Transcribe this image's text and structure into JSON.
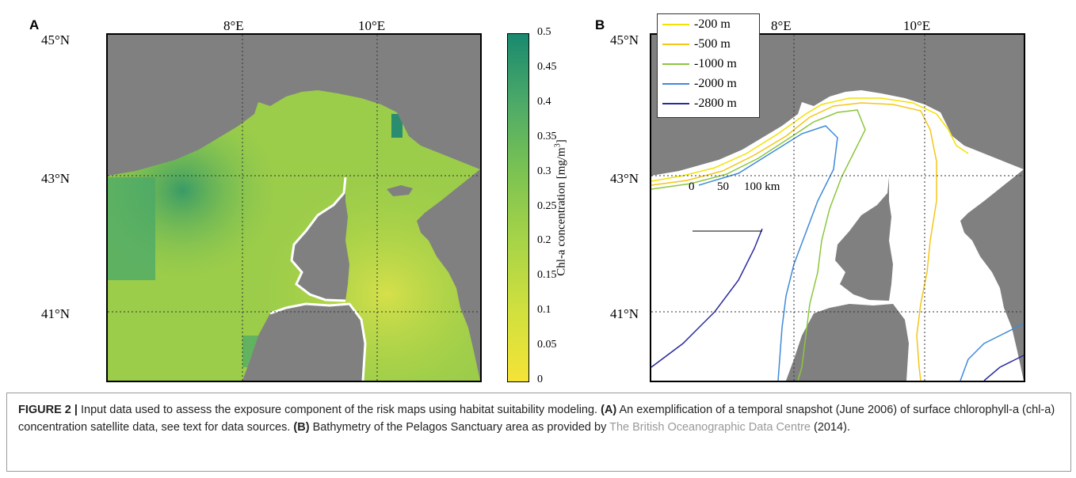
{
  "panel_a": {
    "letter": "A",
    "lon_labels": [
      "8°E",
      "10°E"
    ],
    "lat_labels": [
      "45°N",
      "43°N",
      "41°N"
    ]
  },
  "colorbar": {
    "ticks": [
      "0.5",
      "0.45",
      "0.4",
      "0.35",
      "0.3",
      "0.25",
      "0.2",
      "0.15",
      "0.1",
      "0.05",
      "0"
    ],
    "label": "Chl-a concentration [mg/m",
    "label_sup": "3",
    "label_end": "]",
    "colors": [
      "#f4e337",
      "#a8d447",
      "#4daa68",
      "#19896e"
    ]
  },
  "panel_b": {
    "letter": "B",
    "lon_labels": [
      "8°E",
      "10°E"
    ],
    "lat_labels": [
      "45°N",
      "43°N",
      "41°N"
    ],
    "legend": [
      {
        "label": "-200 m",
        "color": "#f2e200"
      },
      {
        "label": "-500 m",
        "color": "#f5c518"
      },
      {
        "label": "-1000 m",
        "color": "#8cc63f"
      },
      {
        "label": "-2000 m",
        "color": "#3f8ad8"
      },
      {
        "label": "-2800 m",
        "color": "#2a2a9e"
      }
    ],
    "scalebar": {
      "zero": "0",
      "mid": "50",
      "end": "100 km"
    }
  },
  "caption": {
    "figure": "FIGURE 2 |",
    "text1": " Input data used to assess the exposure component of the risk maps using habitat suitability modeling. ",
    "a_label": "(A)",
    "text2": " An exemplification of a temporal snapshot (June 2006) of surface chlorophyll-a (chl-a) concentration satellite data, see text for data sources. ",
    "b_label": "(B)",
    "text3": " Bathymetry of the Pelagos Sanctuary area as provided by ",
    "link": "The British Oceanographic Data Centre",
    "text4": " (2014)."
  },
  "colors": {
    "land": "#808080",
    "sea_b": "#ffffff",
    "grid": "#333333"
  }
}
